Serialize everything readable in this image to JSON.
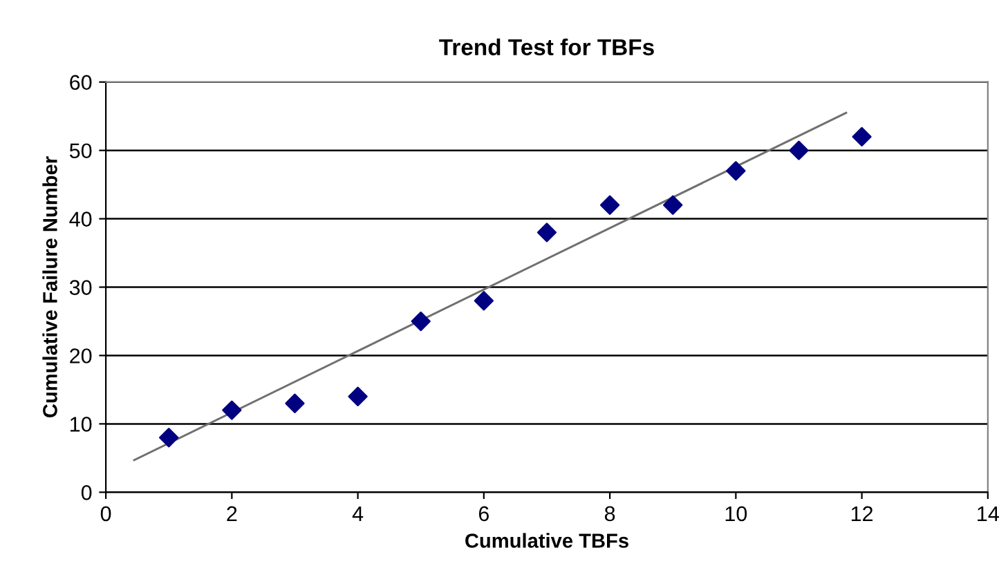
{
  "chart_data": {
    "type": "scatter",
    "title": "Trend Test for TBFs",
    "xlabel": "Cumulative TBFs",
    "ylabel": "Cumulative Failure Number",
    "series": [
      {
        "color": "#000080",
        "marker": "diamond",
        "x": [
          1,
          2,
          3,
          4,
          5,
          6,
          7,
          8,
          9,
          10,
          11,
          12
        ],
        "values": [
          8,
          12,
          13,
          14,
          25,
          28,
          38,
          42,
          42,
          47,
          50,
          52
        ]
      },
      {
        "type": "line",
        "color": "#707070",
        "marker": "none",
        "x": [
          0.45,
          11.75
        ],
        "values": [
          4.7,
          55.5
        ]
      }
    ],
    "xlim": [
      0,
      14
    ],
    "xticks": [
      0,
      2,
      4,
      6,
      8,
      10,
      12,
      14
    ],
    "ylim": [
      0,
      60
    ],
    "yticks": [
      0,
      10,
      20,
      30,
      40,
      50,
      60
    ],
    "grid": "y",
    "legend": false
  }
}
